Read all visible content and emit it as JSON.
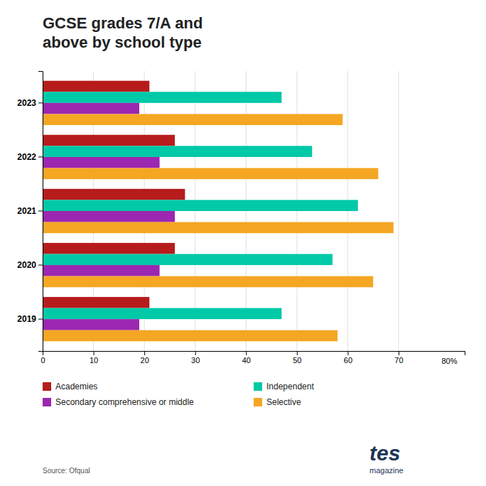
{
  "chart_data": {
    "type": "bar",
    "orientation": "horizontal",
    "title": "GCSE grades 7/A and\nabove by school type",
    "categories": [
      "2019",
      "2020",
      "2021",
      "2022",
      "2023"
    ],
    "series": [
      {
        "name": "Academies",
        "color": "#b71c1c",
        "values": [
          21,
          26,
          28,
          26,
          21
        ]
      },
      {
        "name": "Independent",
        "color": "#00c9a7",
        "values": [
          47,
          57,
          62,
          53,
          47
        ]
      },
      {
        "name": "Secondary comprehensive or middle",
        "color": "#9c27b0",
        "values": [
          19,
          23,
          26,
          23,
          19
        ]
      },
      {
        "name": "Selective",
        "color": "#f5a623",
        "values": [
          58,
          65,
          69,
          66,
          59
        ]
      }
    ],
    "xlim": [
      0,
      83
    ],
    "xticks": [
      0,
      10,
      20,
      30,
      40,
      50,
      60,
      70
    ],
    "grid": true,
    "legend": "bottom",
    "annotations": [
      {
        "text": "80%",
        "x": 80
      },
      {
        "text": "Source: Ofqual"
      },
      {
        "text": "tes"
      },
      {
        "text": "magazine"
      }
    ]
  }
}
